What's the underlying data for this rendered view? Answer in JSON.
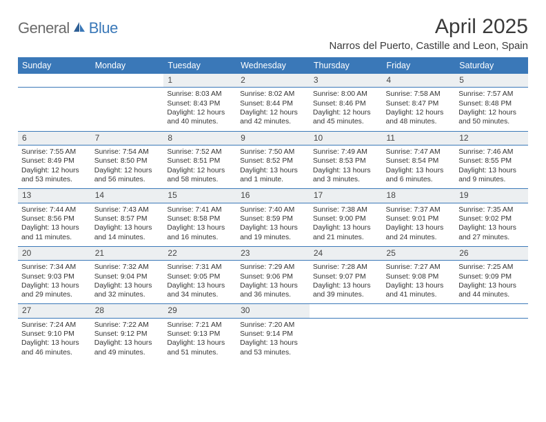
{
  "brand": {
    "a": "General",
    "b": "Blue"
  },
  "title": "April 2025",
  "location": "Narros del Puerto, Castille and Leon, Spain",
  "colors": {
    "accent": "#3a78b8",
    "header_text": "#ffffff",
    "daynum_bg": "#eceff1",
    "body_text": "#333333",
    "logo_gray": "#6a6a6a"
  },
  "font": {
    "title_size": 30,
    "location_size": 15,
    "header_size": 12.5,
    "cell_size": 10.4,
    "daynum_size": 12
  },
  "weekdays": [
    "Sunday",
    "Monday",
    "Tuesday",
    "Wednesday",
    "Thursday",
    "Friday",
    "Saturday"
  ],
  "weeks": [
    [
      null,
      null,
      {
        "n": "1",
        "sr": "Sunrise: 8:03 AM",
        "ss": "Sunset: 8:43 PM",
        "dl1": "Daylight: 12 hours",
        "dl2": "and 40 minutes."
      },
      {
        "n": "2",
        "sr": "Sunrise: 8:02 AM",
        "ss": "Sunset: 8:44 PM",
        "dl1": "Daylight: 12 hours",
        "dl2": "and 42 minutes."
      },
      {
        "n": "3",
        "sr": "Sunrise: 8:00 AM",
        "ss": "Sunset: 8:46 PM",
        "dl1": "Daylight: 12 hours",
        "dl2": "and 45 minutes."
      },
      {
        "n": "4",
        "sr": "Sunrise: 7:58 AM",
        "ss": "Sunset: 8:47 PM",
        "dl1": "Daylight: 12 hours",
        "dl2": "and 48 minutes."
      },
      {
        "n": "5",
        "sr": "Sunrise: 7:57 AM",
        "ss": "Sunset: 8:48 PM",
        "dl1": "Daylight: 12 hours",
        "dl2": "and 50 minutes."
      }
    ],
    [
      {
        "n": "6",
        "sr": "Sunrise: 7:55 AM",
        "ss": "Sunset: 8:49 PM",
        "dl1": "Daylight: 12 hours",
        "dl2": "and 53 minutes."
      },
      {
        "n": "7",
        "sr": "Sunrise: 7:54 AM",
        "ss": "Sunset: 8:50 PM",
        "dl1": "Daylight: 12 hours",
        "dl2": "and 56 minutes."
      },
      {
        "n": "8",
        "sr": "Sunrise: 7:52 AM",
        "ss": "Sunset: 8:51 PM",
        "dl1": "Daylight: 12 hours",
        "dl2": "and 58 minutes."
      },
      {
        "n": "9",
        "sr": "Sunrise: 7:50 AM",
        "ss": "Sunset: 8:52 PM",
        "dl1": "Daylight: 13 hours",
        "dl2": "and 1 minute."
      },
      {
        "n": "10",
        "sr": "Sunrise: 7:49 AM",
        "ss": "Sunset: 8:53 PM",
        "dl1": "Daylight: 13 hours",
        "dl2": "and 3 minutes."
      },
      {
        "n": "11",
        "sr": "Sunrise: 7:47 AM",
        "ss": "Sunset: 8:54 PM",
        "dl1": "Daylight: 13 hours",
        "dl2": "and 6 minutes."
      },
      {
        "n": "12",
        "sr": "Sunrise: 7:46 AM",
        "ss": "Sunset: 8:55 PM",
        "dl1": "Daylight: 13 hours",
        "dl2": "and 9 minutes."
      }
    ],
    [
      {
        "n": "13",
        "sr": "Sunrise: 7:44 AM",
        "ss": "Sunset: 8:56 PM",
        "dl1": "Daylight: 13 hours",
        "dl2": "and 11 minutes."
      },
      {
        "n": "14",
        "sr": "Sunrise: 7:43 AM",
        "ss": "Sunset: 8:57 PM",
        "dl1": "Daylight: 13 hours",
        "dl2": "and 14 minutes."
      },
      {
        "n": "15",
        "sr": "Sunrise: 7:41 AM",
        "ss": "Sunset: 8:58 PM",
        "dl1": "Daylight: 13 hours",
        "dl2": "and 16 minutes."
      },
      {
        "n": "16",
        "sr": "Sunrise: 7:40 AM",
        "ss": "Sunset: 8:59 PM",
        "dl1": "Daylight: 13 hours",
        "dl2": "and 19 minutes."
      },
      {
        "n": "17",
        "sr": "Sunrise: 7:38 AM",
        "ss": "Sunset: 9:00 PM",
        "dl1": "Daylight: 13 hours",
        "dl2": "and 21 minutes."
      },
      {
        "n": "18",
        "sr": "Sunrise: 7:37 AM",
        "ss": "Sunset: 9:01 PM",
        "dl1": "Daylight: 13 hours",
        "dl2": "and 24 minutes."
      },
      {
        "n": "19",
        "sr": "Sunrise: 7:35 AM",
        "ss": "Sunset: 9:02 PM",
        "dl1": "Daylight: 13 hours",
        "dl2": "and 27 minutes."
      }
    ],
    [
      {
        "n": "20",
        "sr": "Sunrise: 7:34 AM",
        "ss": "Sunset: 9:03 PM",
        "dl1": "Daylight: 13 hours",
        "dl2": "and 29 minutes."
      },
      {
        "n": "21",
        "sr": "Sunrise: 7:32 AM",
        "ss": "Sunset: 9:04 PM",
        "dl1": "Daylight: 13 hours",
        "dl2": "and 32 minutes."
      },
      {
        "n": "22",
        "sr": "Sunrise: 7:31 AM",
        "ss": "Sunset: 9:05 PM",
        "dl1": "Daylight: 13 hours",
        "dl2": "and 34 minutes."
      },
      {
        "n": "23",
        "sr": "Sunrise: 7:29 AM",
        "ss": "Sunset: 9:06 PM",
        "dl1": "Daylight: 13 hours",
        "dl2": "and 36 minutes."
      },
      {
        "n": "24",
        "sr": "Sunrise: 7:28 AM",
        "ss": "Sunset: 9:07 PM",
        "dl1": "Daylight: 13 hours",
        "dl2": "and 39 minutes."
      },
      {
        "n": "25",
        "sr": "Sunrise: 7:27 AM",
        "ss": "Sunset: 9:08 PM",
        "dl1": "Daylight: 13 hours",
        "dl2": "and 41 minutes."
      },
      {
        "n": "26",
        "sr": "Sunrise: 7:25 AM",
        "ss": "Sunset: 9:09 PM",
        "dl1": "Daylight: 13 hours",
        "dl2": "and 44 minutes."
      }
    ],
    [
      {
        "n": "27",
        "sr": "Sunrise: 7:24 AM",
        "ss": "Sunset: 9:10 PM",
        "dl1": "Daylight: 13 hours",
        "dl2": "and 46 minutes."
      },
      {
        "n": "28",
        "sr": "Sunrise: 7:22 AM",
        "ss": "Sunset: 9:12 PM",
        "dl1": "Daylight: 13 hours",
        "dl2": "and 49 minutes."
      },
      {
        "n": "29",
        "sr": "Sunrise: 7:21 AM",
        "ss": "Sunset: 9:13 PM",
        "dl1": "Daylight: 13 hours",
        "dl2": "and 51 minutes."
      },
      {
        "n": "30",
        "sr": "Sunrise: 7:20 AM",
        "ss": "Sunset: 9:14 PM",
        "dl1": "Daylight: 13 hours",
        "dl2": "and 53 minutes."
      },
      null,
      null,
      null
    ]
  ]
}
